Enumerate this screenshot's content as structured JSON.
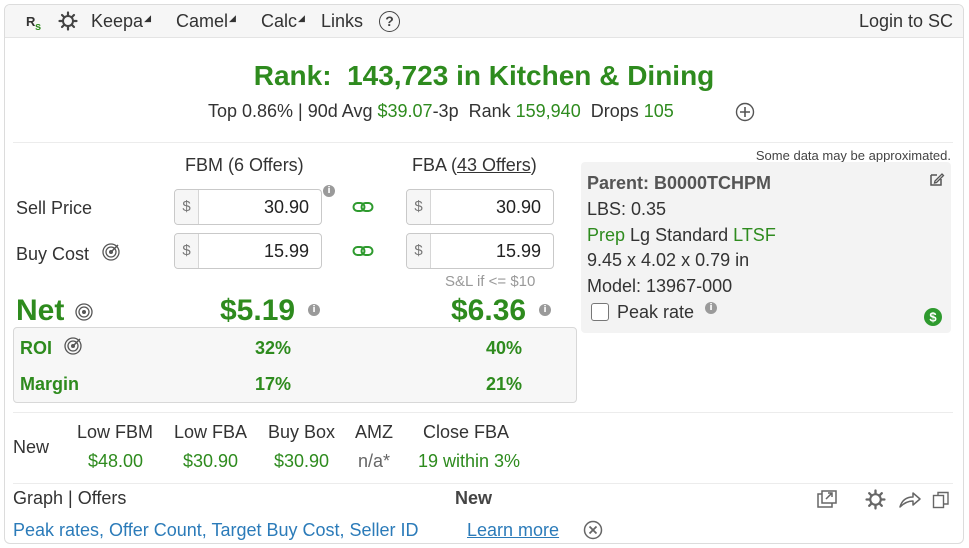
{
  "topbar": {
    "menus": [
      {
        "label": "Keepa",
        "dropdown": true
      },
      {
        "label": "Camel",
        "dropdown": true
      },
      {
        "label": "Calc",
        "dropdown": true
      },
      {
        "label": "Links",
        "dropdown": false
      }
    ],
    "help_symbol": "?",
    "login_label": "Login to SC"
  },
  "rank": {
    "prefix": "Rank:",
    "value": "143,723 in Kitchen & Dining",
    "top_pct": "Top 0.86% | 90d Avg",
    "avg_price": "$39.07",
    "avg_suffix": "-3p",
    "rank_label": "Rank",
    "rank_avg": "159,940",
    "drops_label": "Drops",
    "drops_value": "105"
  },
  "calc": {
    "fbm_header": "FBM (6 Offers)",
    "fba_header_prefix": "FBA (",
    "fba_header_link": "43 Offers",
    "fba_header_suffix": ")",
    "sell_price_label": "Sell Price",
    "buy_cost_label": "Buy Cost",
    "currency": "$",
    "fbm_sell": "30.90",
    "fbm_buy": "15.99",
    "fba_sell": "30.90",
    "fba_buy": "15.99",
    "sl_note": "S&L if <= $10",
    "net_label": "Net",
    "fbm_net": "$5.19",
    "fba_net": "$6.36",
    "roi_label": "ROI",
    "fbm_roi": "32%",
    "fba_roi": "40%",
    "margin_label": "Margin",
    "fbm_margin": "17%",
    "fba_margin": "21%"
  },
  "info": {
    "approx_note": "Some data may be approximated.",
    "parent": "Parent: B0000TCHPM",
    "lbs": "LBS: 0.35",
    "prep": "Prep",
    "size": "Lg Standard",
    "ltsf": "LTSF",
    "dims": "9.45 x 4.02 x 0.79 in",
    "model": "Model: 13967-000",
    "peak_rate_label": "Peak rate",
    "peak_rate_checked": false
  },
  "offers": {
    "condition": "New",
    "columns": [
      {
        "header": "Low FBM",
        "value": "$48.00",
        "color": "green"
      },
      {
        "header": "Low FBA",
        "value": "$30.90",
        "color": "green"
      },
      {
        "header": "Buy Box",
        "value": "$30.90",
        "color": "green"
      },
      {
        "header": "AMZ",
        "value": "n/a*",
        "color": "gray"
      },
      {
        "header": "Close FBA",
        "value": "19 within 3%",
        "color": "green"
      }
    ]
  },
  "bottom": {
    "tabs_label": "Graph | Offers",
    "condition_label": "New",
    "promo_text": "Peak rates, Offer Count, Target Buy Cost, Seller ID",
    "learn_more": "Learn more"
  },
  "colors": {
    "accent_green": "#2e8b1e",
    "link_blue": "#2b7bb9"
  }
}
